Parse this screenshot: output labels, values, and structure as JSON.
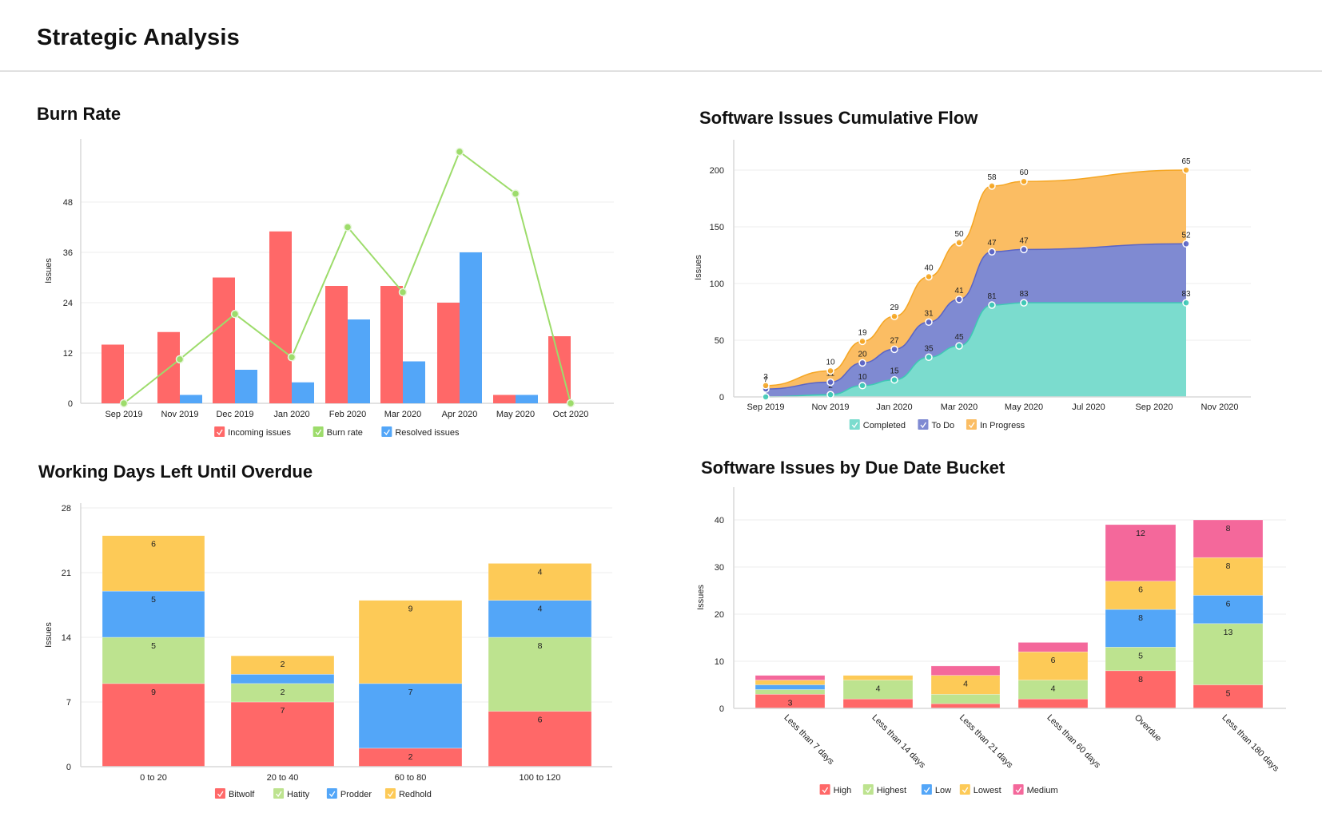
{
  "header": {
    "title": "Strategic Analysis"
  },
  "colors": {
    "red": "#ff6868",
    "green": "#bde38f",
    "blue": "#53a6f8",
    "yellow": "#fdca57",
    "pink": "#f4689b",
    "teal": "#7bdcce",
    "teal_stroke": "#3ec9b5",
    "purple": "#7f8ad2",
    "purple_stroke": "#5a64c6",
    "orange": "#fbbd63",
    "orange_stroke": "#f5a623",
    "burn_line": "#9ddc6b"
  },
  "chart_data": [
    {
      "id": "burn-rate",
      "type": "bar",
      "title": "Burn Rate",
      "xlabel": "",
      "ylabel": "Issues",
      "ylim": [
        0,
        60
      ],
      "yticks": [
        0,
        12,
        24,
        36,
        48
      ],
      "grid": true,
      "legend_position": "bottom",
      "categories": [
        "Sep 2019",
        "Nov 2019",
        "Dec 2019",
        "Jan 2020",
        "Feb 2020",
        "Mar 2020",
        "Apr 2020",
        "May 2020",
        "Oct 2020"
      ],
      "series": [
        {
          "name": "Incoming issues",
          "kind": "bar",
          "color": "red",
          "values": [
            14,
            17,
            30,
            41,
            28,
            28,
            24,
            2,
            16
          ]
        },
        {
          "name": "Resolved issues",
          "kind": "bar",
          "color": "blue",
          "values": [
            0,
            2,
            8,
            5,
            20,
            10,
            36,
            2,
            0
          ]
        },
        {
          "name": "Burn rate",
          "kind": "line",
          "color": "burn_line",
          "values": [
            0,
            10.5,
            21.3,
            11,
            42,
            26.5,
            60,
            50,
            0
          ]
        }
      ],
      "legend": [
        {
          "name": "Incoming issues",
          "color": "red"
        },
        {
          "name": "Burn rate",
          "color": "burn_line"
        },
        {
          "name": "Resolved issues",
          "color": "blue"
        }
      ]
    },
    {
      "id": "cumulative-flow",
      "type": "area",
      "title": "Software Issues Cumulative Flow",
      "xlabel": "",
      "ylabel": "Issues",
      "ylim": [
        0,
        200
      ],
      "yticks": [
        0,
        50,
        100,
        150,
        200
      ],
      "grid": true,
      "stacked": true,
      "legend_position": "bottom",
      "xticks": [
        "Sep 2019",
        "Nov 2019",
        "Jan 2020",
        "Mar 2020",
        "May 2020",
        "Jul 2020",
        "Sep 2020",
        "Nov 2020"
      ],
      "x": [
        "2019-09",
        "2019-11",
        "2019-12",
        "2020-01",
        "2020-02",
        "2020-03",
        "2020-04",
        "2020-05",
        "2020-10"
      ],
      "series": [
        {
          "name": "Completed",
          "color": "teal",
          "stroke": "teal_stroke",
          "values": [
            0,
            2,
            10,
            15,
            35,
            45,
            81,
            83,
            83
          ]
        },
        {
          "name": "To Do",
          "color": "purple",
          "stroke": "purple_stroke",
          "values": [
            7,
            11,
            20,
            27,
            31,
            41,
            47,
            47,
            52
          ]
        },
        {
          "name": "In Progress",
          "color": "orange",
          "stroke": "orange_stroke",
          "values": [
            3,
            10,
            19,
            29,
            40,
            50,
            58,
            60,
            65
          ]
        }
      ]
    },
    {
      "id": "working-days",
      "type": "bar",
      "stacked": true,
      "title": "Working Days Left Until Overdue",
      "xlabel": "",
      "ylabel": "Issues",
      "ylim": [
        0,
        28
      ],
      "yticks": [
        0,
        7,
        14,
        21,
        28
      ],
      "grid": true,
      "legend_position": "bottom",
      "categories": [
        "0 to 20",
        "20 to 40",
        "60 to 80",
        "100 to 120"
      ],
      "series": [
        {
          "name": "Bitwolf",
          "color": "red",
          "values": [
            9,
            7,
            2,
            6
          ]
        },
        {
          "name": "Hatity",
          "color": "green",
          "values": [
            5,
            2,
            0,
            8
          ]
        },
        {
          "name": "Prodder",
          "color": "blue",
          "values": [
            5,
            1,
            7,
            4
          ]
        },
        {
          "name": "Redhold",
          "color": "yellow",
          "values": [
            6,
            2,
            9,
            4
          ]
        }
      ],
      "data_labels_min": 2
    },
    {
      "id": "due-date-bucket",
      "type": "bar",
      "stacked": true,
      "title": "Software Issues by Due Date Bucket",
      "xlabel": "",
      "ylabel": "Issues",
      "ylim": [
        0,
        46
      ],
      "yticks": [
        0,
        10,
        20,
        30,
        40
      ],
      "grid": true,
      "legend_position": "bottom",
      "categories": [
        "Less than 7 days",
        "Less than 14 days",
        "Less than 21 days",
        "Less than 60 days",
        "Overdue",
        "Less than 180 days"
      ],
      "series": [
        {
          "name": "High",
          "color": "red",
          "values": [
            3,
            2,
            1,
            2,
            8,
            5
          ]
        },
        {
          "name": "Highest",
          "color": "green",
          "values": [
            1,
            4,
            2,
            4,
            5,
            13
          ]
        },
        {
          "name": "Low",
          "color": "blue",
          "values": [
            1,
            0,
            0,
            0,
            8,
            6
          ]
        },
        {
          "name": "Lowest",
          "color": "yellow",
          "values": [
            1,
            1,
            4,
            6,
            6,
            8
          ]
        },
        {
          "name": "Medium",
          "color": "pink",
          "values": [
            1,
            0,
            2,
            2,
            12,
            8
          ]
        }
      ],
      "data_labels_min": 3
    }
  ]
}
